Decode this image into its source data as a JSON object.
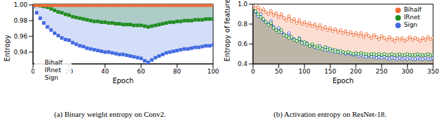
{
  "chart_data": [
    {
      "type": "line",
      "title": "(a) Binary weight entropy on Conv2.",
      "x_label": "Epoch",
      "y_label": "Entropy",
      "x": [
        0,
        2,
        4,
        6,
        8,
        10,
        12,
        14,
        16,
        18,
        20,
        22,
        24,
        26,
        28,
        30,
        32,
        34,
        36,
        38,
        40,
        42,
        44,
        46,
        48,
        50,
        52,
        54,
        56,
        58,
        60,
        62,
        64,
        66,
        68,
        70,
        72,
        74,
        76,
        78,
        80,
        82,
        84,
        86,
        88,
        90,
        92,
        94,
        96,
        98,
        100
      ],
      "xlim": [
        0,
        100
      ],
      "xticks": [
        0,
        20,
        40,
        60,
        80,
        100
      ],
      "ylim": [
        0.925,
        1.001
      ],
      "yticks": [
        0.94,
        0.96,
        0.98,
        {
          "value": 1,
          "label": "1.00"
        }
      ],
      "grid": false,
      "legend": "lower left",
      "series": [
        {
          "name": "Sign",
          "color": "#4169e1",
          "marker": "square",
          "line_style": "none",
          "values": [
            0.998,
            0.99,
            0.983,
            0.977,
            0.972,
            0.968,
            0.964,
            0.961,
            0.958,
            0.956,
            0.955,
            0.952,
            0.95,
            0.948,
            0.947,
            0.945,
            0.944,
            0.943,
            0.942,
            0.941,
            0.94,
            0.94,
            0.939,
            0.938,
            0.937,
            0.937,
            0.936,
            0.935,
            0.934,
            0.933,
            0.932,
            0.929,
            0.927,
            0.93,
            0.933,
            0.935,
            0.937,
            0.939,
            0.94,
            0.941,
            0.942,
            0.943,
            0.944,
            0.944,
            0.945,
            0.946,
            0.946,
            0.947,
            0.948,
            0.948,
            0.949
          ]
        },
        {
          "name": "IRnet",
          "color": "#1e8c1e",
          "marker": "square",
          "line_style": "none",
          "values": [
            1.0,
            1.0,
            0.999,
            0.998,
            0.997,
            0.995,
            0.993,
            0.991,
            0.99,
            0.988,
            0.987,
            0.985,
            0.984,
            0.983,
            0.982,
            0.981,
            0.98,
            0.979,
            0.979,
            0.978,
            0.978,
            0.977,
            0.977,
            0.976,
            0.976,
            0.975,
            0.975,
            0.975,
            0.974,
            0.974,
            0.974,
            0.973,
            0.972,
            0.973,
            0.974,
            0.975,
            0.976,
            0.977,
            0.978,
            0.978,
            0.979,
            0.979,
            0.98,
            0.98,
            0.98,
            0.981,
            0.981,
            0.981,
            0.982,
            0.982,
            0.982
          ]
        },
        {
          "name": "Bihalf",
          "color": "#f06a35",
          "marker": "square",
          "line_style": "none",
          "values": [
            0.9995,
            0.9995,
            0.9995,
            0.9995,
            0.9995,
            0.9995,
            0.9995,
            0.9995,
            0.9995,
            0.9995,
            0.9995,
            0.9995,
            0.9995,
            0.9995,
            0.9995,
            0.9995,
            0.9995,
            0.9995,
            0.9995,
            0.9995,
            0.9995,
            0.9995,
            0.9995,
            0.9995,
            0.9995,
            0.9995,
            0.9995,
            0.9995,
            0.9995,
            0.9995,
            0.9995,
            0.9995,
            0.9995,
            0.9995,
            0.9995,
            0.9995,
            0.9995,
            0.9995,
            0.9995,
            0.9995,
            0.9995,
            0.9995,
            0.9995,
            0.9995,
            0.9995,
            0.9995,
            0.9995,
            0.9995,
            0.9995,
            0.9995,
            0.9995
          ]
        }
      ]
    },
    {
      "type": "line",
      "title": "(b) Activation entropy on ResNet-18.",
      "x_label": "Epoch",
      "y_label": "Entropy of features",
      "x": [
        0,
        5,
        10,
        15,
        20,
        25,
        30,
        35,
        40,
        45,
        50,
        55,
        60,
        65,
        70,
        75,
        80,
        85,
        90,
        95,
        100,
        105,
        110,
        115,
        120,
        125,
        130,
        135,
        140,
        145,
        150,
        155,
        160,
        165,
        170,
        175,
        180,
        185,
        190,
        195,
        200,
        205,
        210,
        215,
        220,
        225,
        230,
        235,
        240,
        245,
        250,
        255,
        260,
        265,
        270,
        275,
        280,
        285,
        290,
        295,
        300,
        305,
        310,
        315,
        320,
        325,
        330,
        335,
        340,
        345,
        350
      ],
      "xlim": [
        0,
        350
      ],
      "xticks": [
        0,
        50,
        100,
        150,
        200,
        250,
        300,
        350
      ],
      "ylim": [
        0.4,
        1.0
      ],
      "yticks": [
        0.4,
        0.6,
        0.8,
        {
          "value": 1,
          "label": "1.0"
        }
      ],
      "grid": false,
      "legend": "upper right",
      "series": [
        {
          "name": "Sign",
          "color": "#4169e1",
          "marker": "circle",
          "line_style": "solid",
          "values": [
            0.97,
            0.92,
            0.88,
            0.9,
            0.84,
            0.82,
            0.8,
            0.83,
            0.77,
            0.74,
            0.76,
            0.72,
            0.7,
            0.68,
            0.71,
            0.66,
            0.65,
            0.63,
            0.66,
            0.62,
            0.6,
            0.61,
            0.58,
            0.59,
            0.57,
            0.56,
            0.58,
            0.55,
            0.54,
            0.56,
            0.53,
            0.54,
            0.52,
            0.53,
            0.51,
            0.52,
            0.5,
            0.51,
            0.5,
            0.49,
            0.5,
            0.48,
            0.49,
            0.48,
            0.47,
            0.48,
            0.47,
            0.48,
            0.46,
            0.47,
            0.46,
            0.47,
            0.46,
            0.45,
            0.46,
            0.46,
            0.45,
            0.46,
            0.45,
            0.46,
            0.45,
            0.46,
            0.45,
            0.45,
            0.46,
            0.45,
            0.45,
            0.46,
            0.45,
            0.45,
            0.46
          ]
        },
        {
          "name": "IRnet",
          "color": "#1e8c1e",
          "marker": "circle",
          "line_style": "solid",
          "values": [
            0.96,
            0.93,
            0.9,
            0.87,
            0.85,
            0.82,
            0.79,
            0.81,
            0.76,
            0.74,
            0.72,
            0.74,
            0.69,
            0.68,
            0.66,
            0.67,
            0.64,
            0.63,
            0.65,
            0.61,
            0.62,
            0.6,
            0.58,
            0.6,
            0.57,
            0.58,
            0.56,
            0.55,
            0.57,
            0.54,
            0.55,
            0.53,
            0.54,
            0.52,
            0.53,
            0.52,
            0.51,
            0.52,
            0.51,
            0.5,
            0.51,
            0.5,
            0.51,
            0.5,
            0.5,
            0.49,
            0.5,
            0.5,
            0.49,
            0.5,
            0.49,
            0.5,
            0.49,
            0.49,
            0.5,
            0.49,
            0.49,
            0.5,
            0.49,
            0.49,
            0.5,
            0.49,
            0.49,
            0.49,
            0.5,
            0.49,
            0.49,
            0.49,
            0.5,
            0.49,
            0.49
          ]
        },
        {
          "name": "Bihalf",
          "color": "#f06a35",
          "marker": "circle",
          "line_style": "solid",
          "values": [
            0.98,
            0.96,
            0.97,
            0.93,
            0.95,
            0.92,
            0.9,
            0.93,
            0.89,
            0.91,
            0.87,
            0.9,
            0.86,
            0.84,
            0.88,
            0.83,
            0.85,
            0.81,
            0.84,
            0.8,
            0.82,
            0.79,
            0.81,
            0.78,
            0.8,
            0.76,
            0.79,
            0.75,
            0.77,
            0.74,
            0.76,
            0.73,
            0.75,
            0.72,
            0.74,
            0.71,
            0.73,
            0.7,
            0.72,
            0.69,
            0.71,
            0.68,
            0.71,
            0.67,
            0.7,
            0.68,
            0.66,
            0.69,
            0.67,
            0.65,
            0.68,
            0.66,
            0.64,
            0.67,
            0.65,
            0.63,
            0.66,
            0.64,
            0.66,
            0.63,
            0.65,
            0.67,
            0.64,
            0.66,
            0.65,
            0.63,
            0.66,
            0.64,
            0.67,
            0.65,
            0.66
          ]
        }
      ]
    }
  ]
}
